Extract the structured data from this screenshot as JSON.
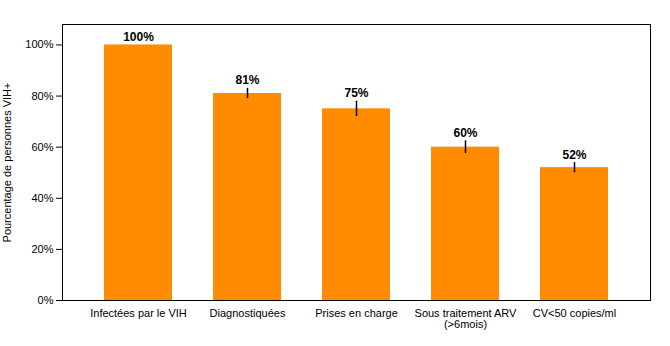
{
  "chart_data": {
    "type": "bar",
    "categories": [
      "Infectées par le VIH",
      "Diagnostiquées",
      "Prises en charge",
      "Sous traitement ARV\n(>6mois)",
      "CV<50 copies/ml"
    ],
    "values": [
      100,
      81,
      75,
      60,
      52
    ],
    "errors": [
      0,
      2.0,
      3.0,
      2.5,
      2.0
    ],
    "value_labels": [
      "100%",
      "81%",
      "75%",
      "60%",
      "52%"
    ],
    "data_labels": true,
    "color": "#FF8C00",
    "ylabel": "Pourcentage de personnes VIH+",
    "ylim": [
      0,
      108
    ],
    "yticks": [
      {
        "value": 0,
        "label": "0%"
      },
      {
        "value": 20,
        "label": "20%"
      },
      {
        "value": 40,
        "label": "40%"
      },
      {
        "value": 60,
        "label": "60%"
      },
      {
        "value": 80,
        "label": "80%"
      },
      {
        "value": 100,
        "label": "100%"
      }
    ],
    "grid": false
  }
}
